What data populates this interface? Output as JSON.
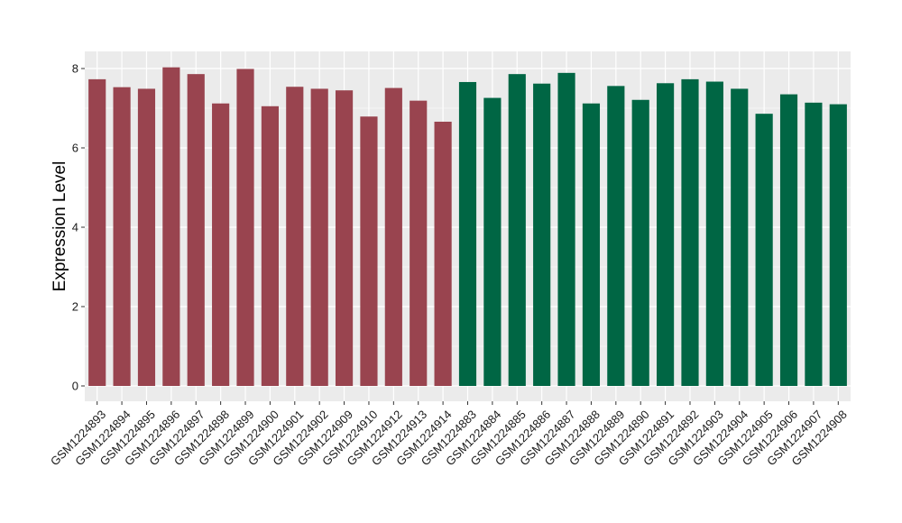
{
  "chart_data": {
    "type": "bar",
    "title": "",
    "xlabel": "",
    "ylabel": "Expression Level",
    "ylim": [
      0,
      8.2
    ],
    "yticks": [
      0,
      2,
      4,
      6,
      8
    ],
    "grid": true,
    "legend": "none",
    "colors": {
      "group_a": "#99444f",
      "group_b": "#006644",
      "panel": "#ebebeb",
      "gridline": "#ffffff"
    },
    "categories": [
      "GSM1224893",
      "GSM1224894",
      "GSM1224895",
      "GSM1224896",
      "GSM1224897",
      "GSM1224898",
      "GSM1224899",
      "GSM1224900",
      "GSM1224901",
      "GSM1224902",
      "GSM1224909",
      "GSM1224910",
      "GSM1224912",
      "GSM1224913",
      "GSM1224914",
      "GSM1224883",
      "GSM1224884",
      "GSM1224885",
      "GSM1224886",
      "GSM1224887",
      "GSM1224888",
      "GSM1224889",
      "GSM1224890",
      "GSM1224891",
      "GSM1224892",
      "GSM1224903",
      "GSM1224904",
      "GSM1224905",
      "GSM1224906",
      "GSM1224907",
      "GSM1224908"
    ],
    "values": [
      7.73,
      7.53,
      7.49,
      8.03,
      7.86,
      7.12,
      7.99,
      7.05,
      7.54,
      7.49,
      7.45,
      6.79,
      7.51,
      7.19,
      6.66,
      7.66,
      7.26,
      7.86,
      7.62,
      7.89,
      7.12,
      7.56,
      7.21,
      7.63,
      7.73,
      7.67,
      7.49,
      6.86,
      7.35,
      7.14,
      7.1
    ],
    "groups": [
      "a",
      "a",
      "a",
      "a",
      "a",
      "a",
      "a",
      "a",
      "a",
      "a",
      "a",
      "a",
      "a",
      "a",
      "a",
      "b",
      "b",
      "b",
      "b",
      "b",
      "b",
      "b",
      "b",
      "b",
      "b",
      "b",
      "b",
      "b",
      "b",
      "b",
      "b"
    ]
  }
}
